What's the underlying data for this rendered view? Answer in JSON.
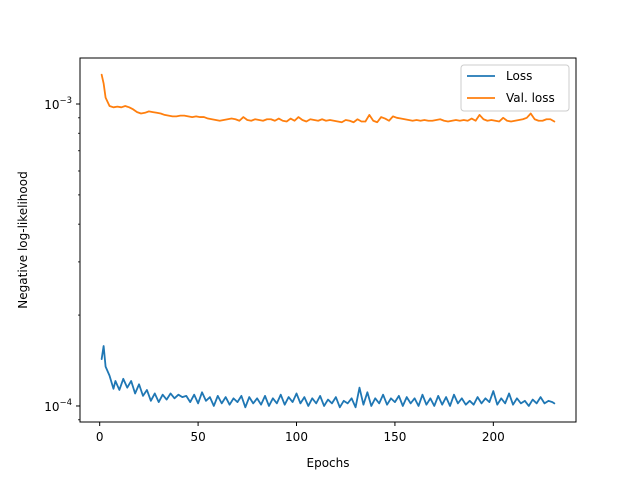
{
  "chart_data": {
    "type": "line",
    "title": "",
    "xlabel": "Epochs",
    "ylabel": "Negative log-likelihood",
    "yscale": "log",
    "xlim": [
      -10,
      242
    ],
    "ylim": [
      8.85e-05,
      0.00142
    ],
    "xticks": [
      {
        "value": 0,
        "label": "0"
      },
      {
        "value": 50,
        "label": "50"
      },
      {
        "value": 100,
        "label": "100"
      },
      {
        "value": 150,
        "label": "150"
      },
      {
        "value": 200,
        "label": "200"
      }
    ],
    "yticks": [
      {
        "value": 0.0001,
        "base": "10",
        "exp": "−4"
      },
      {
        "value": 0.001,
        "base": "10",
        "exp": "−3"
      }
    ],
    "legend_position": "top-right",
    "grid": false,
    "series": [
      {
        "name": "Loss",
        "color": "#1f77b4",
        "x": [
          1,
          2,
          3,
          5,
          7,
          8,
          10,
          12,
          14,
          16,
          18,
          20,
          22,
          24,
          26,
          28,
          30,
          32,
          34,
          36,
          38,
          40,
          42,
          44,
          46,
          48,
          50,
          52,
          54,
          56,
          58,
          60,
          62,
          64,
          66,
          68,
          70,
          72,
          74,
          76,
          78,
          80,
          82,
          84,
          86,
          88,
          90,
          92,
          94,
          96,
          98,
          100,
          102,
          104,
          106,
          108,
          110,
          112,
          114,
          116,
          118,
          120,
          122,
          124,
          126,
          128,
          130,
          132,
          134,
          136,
          138,
          140,
          142,
          144,
          146,
          148,
          150,
          152,
          154,
          156,
          158,
          160,
          162,
          164,
          166,
          168,
          170,
          172,
          174,
          176,
          178,
          180,
          182,
          184,
          186,
          188,
          190,
          192,
          194,
          196,
          198,
          200,
          202,
          204,
          206,
          208,
          210,
          212,
          214,
          216,
          218,
          220,
          222,
          224,
          226,
          228,
          230,
          231
        ],
        "y": [
          0.000143,
          0.000158,
          0.000135,
          0.000126,
          0.000114,
          0.000121,
          0.000113,
          0.000123,
          0.000115,
          0.000121,
          0.00011,
          0.000118,
          0.000108,
          0.000113,
          0.000104,
          0.00011,
          0.000103,
          0.000109,
          0.000105,
          0.00011,
          0.000106,
          0.000109,
          0.000107,
          0.000108,
          0.000103,
          0.000109,
          0.000102,
          0.000111,
          0.000104,
          0.000107,
          0.0001,
          0.000108,
          0.000102,
          0.000107,
          0.000101,
          0.000106,
          0.000103,
          0.000108,
          9.9e-05,
          0.000107,
          0.000102,
          0.000106,
          0.000101,
          0.000108,
          0.0001,
          0.000106,
          0.000102,
          0.000109,
          0.000101,
          0.000107,
          0.000103,
          0.00011,
          0.000102,
          0.000107,
          0.0001,
          0.000106,
          0.000102,
          0.000108,
          0.0001,
          0.000105,
          0.000102,
          0.000107,
          9.9e-05,
          0.000104,
          0.000102,
          0.000106,
          9.9e-05,
          0.000115,
          0.000101,
          0.000111,
          0.0001,
          0.000106,
          0.000102,
          0.000109,
          0.000101,
          0.000106,
          0.000103,
          0.000108,
          0.0001,
          0.000107,
          0.000102,
          0.000106,
          0.0001,
          0.000109,
          0.000101,
          0.000106,
          0.0001,
          0.000108,
          0.000101,
          0.000107,
          0.0001,
          0.000109,
          0.000102,
          0.000106,
          0.000101,
          0.000104,
          0.000101,
          0.000107,
          0.000102,
          0.000106,
          0.000103,
          0.000112,
          0.000101,
          0.000106,
          0.000102,
          0.00011,
          0.000101,
          0.000106,
          0.000102,
          0.000104,
          0.0001,
          0.000105,
          0.000102,
          0.000107,
          0.000102,
          0.000104,
          0.000103,
          0.000102
        ]
      },
      {
        "name": "Val. loss",
        "color": "#ff7f0e",
        "x": [
          1,
          2,
          3,
          5,
          7,
          9,
          11,
          13,
          15,
          17,
          19,
          21,
          23,
          25,
          27,
          29,
          31,
          33,
          35,
          37,
          39,
          41,
          43,
          45,
          47,
          49,
          51,
          53,
          55,
          57,
          59,
          61,
          63,
          65,
          67,
          69,
          71,
          73,
          75,
          77,
          79,
          81,
          83,
          85,
          87,
          89,
          91,
          93,
          95,
          97,
          99,
          101,
          103,
          105,
          107,
          109,
          111,
          113,
          115,
          117,
          119,
          121,
          123,
          125,
          127,
          129,
          131,
          133,
          135,
          137,
          139,
          141,
          143,
          145,
          147,
          149,
          151,
          153,
          155,
          157,
          159,
          161,
          163,
          165,
          167,
          169,
          171,
          173,
          175,
          177,
          179,
          181,
          183,
          185,
          187,
          189,
          191,
          193,
          195,
          197,
          199,
          201,
          203,
          205,
          207,
          209,
          211,
          213,
          215,
          217,
          219,
          221,
          223,
          225,
          227,
          229,
          231
        ],
        "y": [
          0.00125,
          0.00117,
          0.00105,
          0.000985,
          0.000975,
          0.00098,
          0.000975,
          0.000985,
          0.000975,
          0.00096,
          0.00094,
          0.00093,
          0.000935,
          0.000945,
          0.00094,
          0.000935,
          0.00093,
          0.00092,
          0.000915,
          0.00091,
          0.00091,
          0.000915,
          0.000915,
          0.00091,
          0.000905,
          0.00091,
          0.000905,
          0.000905,
          0.000895,
          0.00089,
          0.000885,
          0.00088,
          0.000885,
          0.00089,
          0.000895,
          0.00089,
          0.00088,
          0.000905,
          0.000885,
          0.00088,
          0.00089,
          0.000885,
          0.00088,
          0.00089,
          0.00089,
          0.00088,
          0.000895,
          0.00088,
          0.000875,
          0.000895,
          0.00088,
          0.000905,
          0.000885,
          0.000875,
          0.00089,
          0.000885,
          0.00088,
          0.00089,
          0.00088,
          0.000885,
          0.00088,
          0.000875,
          0.00087,
          0.000885,
          0.00088,
          0.00087,
          0.00089,
          0.000875,
          0.000875,
          0.00092,
          0.00088,
          0.00087,
          0.000905,
          0.000895,
          0.00088,
          0.00091,
          0.0009,
          0.000895,
          0.00089,
          0.000885,
          0.00088,
          0.000885,
          0.00088,
          0.000885,
          0.00088,
          0.00088,
          0.000885,
          0.00089,
          0.00088,
          0.000875,
          0.00088,
          0.000885,
          0.00088,
          0.000885,
          0.00088,
          0.000895,
          0.00088,
          0.00092,
          0.00089,
          0.00088,
          0.000885,
          0.00088,
          0.000875,
          0.0009,
          0.00088,
          0.000875,
          0.00088,
          0.000885,
          0.00089,
          0.0009,
          0.00093,
          0.00089,
          0.00088,
          0.00088,
          0.00089,
          0.00089,
          0.000875
        ]
      }
    ]
  }
}
